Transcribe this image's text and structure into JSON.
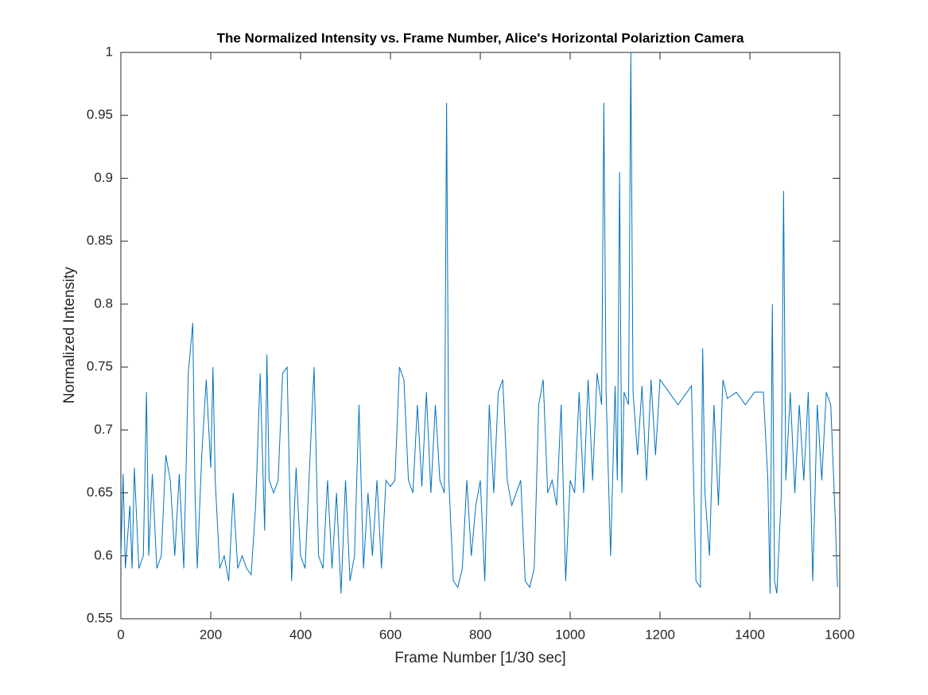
{
  "chart_data": {
    "type": "line",
    "title": "The Normalized Intensity vs. Frame Number, Alice's Horizontal Polariztion Camera",
    "x_label": "Frame Number [1/30 sec]",
    "y_label": "Normalized Intensity",
    "xlim": [
      0,
      1600
    ],
    "ylim": [
      0.55,
      1
    ],
    "xticks": [
      0,
      200,
      400,
      600,
      800,
      1000,
      1200,
      1400,
      1600
    ],
    "yticks": [
      0.55,
      0.6,
      0.65,
      0.7,
      0.75,
      0.8,
      0.85,
      0.9,
      0.95,
      1
    ],
    "color": "#0072bd",
    "x": [
      0,
      5,
      10,
      20,
      25,
      30,
      40,
      50,
      57,
      62,
      70,
      80,
      90,
      100,
      110,
      120,
      130,
      140,
      150,
      160,
      165,
      170,
      180,
      190,
      200,
      205,
      210,
      220,
      230,
      240,
      250,
      260,
      270,
      280,
      290,
      300,
      310,
      320,
      325,
      330,
      340,
      350,
      360,
      370,
      380,
      390,
      400,
      410,
      420,
      430,
      440,
      450,
      460,
      470,
      480,
      490,
      500,
      510,
      520,
      530,
      540,
      550,
      560,
      570,
      580,
      590,
      600,
      610,
      620,
      630,
      640,
      650,
      660,
      670,
      680,
      690,
      700,
      710,
      720,
      725,
      730,
      740,
      750,
      760,
      770,
      780,
      790,
      800,
      810,
      820,
      830,
      840,
      850,
      860,
      870,
      880,
      890,
      900,
      910,
      920,
      930,
      940,
      950,
      960,
      970,
      980,
      990,
      1000,
      1010,
      1020,
      1030,
      1040,
      1050,
      1060,
      1070,
      1075,
      1080,
      1090,
      1100,
      1105,
      1110,
      1115,
      1120,
      1130,
      1135,
      1140,
      1150,
      1160,
      1170,
      1180,
      1190,
      1200,
      1220,
      1240,
      1260,
      1270,
      1280,
      1290,
      1295,
      1300,
      1310,
      1320,
      1330,
      1340,
      1350,
      1370,
      1390,
      1410,
      1430,
      1440,
      1445,
      1450,
      1455,
      1460,
      1470,
      1475,
      1480,
      1490,
      1500,
      1510,
      1520,
      1530,
      1540,
      1550,
      1560,
      1570,
      1580,
      1590,
      1595
    ],
    "values": [
      0.6,
      0.665,
      0.59,
      0.64,
      0.59,
      0.67,
      0.59,
      0.6,
      0.73,
      0.6,
      0.665,
      0.59,
      0.6,
      0.68,
      0.66,
      0.6,
      0.665,
      0.59,
      0.745,
      0.785,
      0.65,
      0.59,
      0.68,
      0.74,
      0.67,
      0.75,
      0.66,
      0.59,
      0.6,
      0.58,
      0.65,
      0.59,
      0.6,
      0.59,
      0.585,
      0.64,
      0.745,
      0.62,
      0.76,
      0.66,
      0.65,
      0.66,
      0.745,
      0.75,
      0.58,
      0.67,
      0.6,
      0.59,
      0.67,
      0.75,
      0.6,
      0.59,
      0.66,
      0.59,
      0.65,
      0.57,
      0.66,
      0.58,
      0.6,
      0.72,
      0.59,
      0.65,
      0.6,
      0.66,
      0.59,
      0.66,
      0.655,
      0.66,
      0.75,
      0.74,
      0.66,
      0.65,
      0.72,
      0.655,
      0.73,
      0.65,
      0.72,
      0.66,
      0.65,
      0.96,
      0.66,
      0.58,
      0.575,
      0.59,
      0.66,
      0.6,
      0.64,
      0.66,
      0.58,
      0.72,
      0.65,
      0.73,
      0.74,
      0.66,
      0.64,
      0.65,
      0.66,
      0.58,
      0.575,
      0.59,
      0.72,
      0.74,
      0.65,
      0.66,
      0.64,
      0.72,
      0.58,
      0.66,
      0.65,
      0.73,
      0.65,
      0.74,
      0.66,
      0.745,
      0.72,
      0.96,
      0.73,
      0.6,
      0.735,
      0.66,
      0.905,
      0.65,
      0.73,
      0.72,
      1.0,
      0.73,
      0.68,
      0.735,
      0.66,
      0.74,
      0.68,
      0.74,
      0.73,
      0.72,
      0.73,
      0.735,
      0.58,
      0.575,
      0.765,
      0.65,
      0.6,
      0.72,
      0.64,
      0.74,
      0.725,
      0.73,
      0.72,
      0.73,
      0.73,
      0.66,
      0.57,
      0.8,
      0.58,
      0.57,
      0.65,
      0.89,
      0.66,
      0.73,
      0.65,
      0.72,
      0.66,
      0.73,
      0.58,
      0.72,
      0.66,
      0.73,
      0.72,
      0.63,
      0.575
    ]
  }
}
